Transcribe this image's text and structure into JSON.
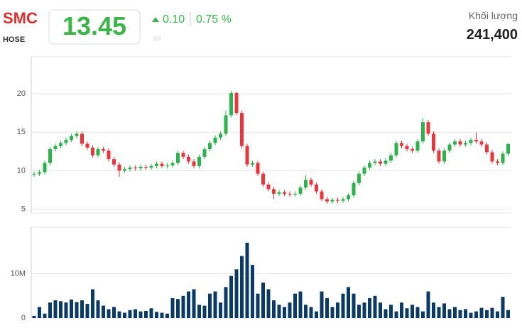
{
  "header": {
    "symbol": "SMC",
    "exchange": "HOSE",
    "price": "13.45",
    "change": "0.10",
    "change_pct": "0.75 %",
    "volume_label": "Khối lượng",
    "volume": "241,400"
  },
  "chart_data": [
    {
      "type": "candlestick",
      "up_color": "#2eb24b",
      "down_color": "#e8363c",
      "ylim": [
        4.5,
        24.8
      ],
      "yticks": [
        5,
        10,
        15,
        20
      ],
      "grid": true,
      "open": [
        9.5,
        9.6,
        9.8,
        11,
        12.8,
        13.2,
        13.6,
        14,
        14.5,
        14.8,
        13.5,
        13,
        12,
        12.8,
        12.6,
        11.5,
        10.8,
        10,
        10.2,
        10.4,
        10.3,
        10.5,
        10.4,
        10.6,
        10.9,
        10.6,
        10.7,
        11,
        12.3,
        11.8,
        11.2,
        10.6,
        11.8,
        12.8,
        13.6,
        14.3,
        14.8,
        17.2,
        20.1,
        17.5,
        13.2,
        10.8,
        11,
        9.6,
        8.2,
        7.6,
        7,
        7.2,
        7,
        6.9,
        7,
        7.8,
        8.8,
        8.2,
        7.3,
        6.3,
        6,
        6.2,
        6.1,
        6.3,
        6.8,
        8.4,
        9.6,
        10.4,
        11,
        11.2,
        10.9,
        11.3,
        12,
        13.6,
        13.2,
        12.8,
        12.6,
        13.8,
        16.3,
        14.8,
        12.6,
        11.2,
        12.6,
        13.4,
        13.8,
        13.4,
        13.6,
        14,
        13.8,
        13.4,
        12.4,
        11.2,
        11,
        12.2
      ],
      "high": [
        9.9,
        10.1,
        11.3,
        13.1,
        13.5,
        13.9,
        14.3,
        14.8,
        15.1,
        15.1,
        13.8,
        13.3,
        13.1,
        13.1,
        12.9,
        11.8,
        11.1,
        10.5,
        10.7,
        10.7,
        10.8,
        10.8,
        10.9,
        11.2,
        11.2,
        11,
        11.3,
        12.6,
        12.6,
        12.1,
        11.5,
        12.1,
        13.1,
        13.9,
        14.6,
        15.1,
        17.8,
        20.4,
        20.3,
        17.8,
        13.5,
        11.3,
        11.3,
        9.9,
        8.5,
        7.9,
        7.5,
        7.5,
        7.3,
        7.3,
        8.1,
        9.4,
        9.1,
        8.5,
        7.6,
        6.6,
        6.5,
        6.5,
        6.6,
        7.1,
        8.7,
        9.9,
        10.7,
        11.3,
        11.5,
        11.5,
        11.6,
        12.3,
        13.9,
        13.9,
        13.5,
        13.1,
        14.1,
        16.8,
        16.6,
        15.1,
        12.9,
        12.9,
        13.7,
        14.1,
        14.1,
        13.9,
        14.3,
        15,
        14.1,
        13.7,
        12.7,
        11.5,
        12.5,
        13.6
      ],
      "low": [
        9.2,
        9.3,
        9.5,
        10.7,
        12.5,
        12.9,
        13.3,
        13.7,
        14.2,
        13.2,
        12.7,
        11.7,
        11.7,
        12.3,
        11.2,
        10.5,
        9.2,
        9.7,
        9.9,
        10,
        10,
        10.1,
        10.1,
        10.3,
        10.3,
        10.3,
        10.4,
        10.7,
        11.5,
        10.9,
        10.3,
        10.3,
        11.5,
        12.5,
        13.3,
        14,
        14.5,
        16.9,
        17.2,
        12.9,
        10.5,
        10.5,
        9.3,
        7.9,
        7.3,
        6.3,
        6.7,
        6.7,
        6.6,
        6.6,
        6.7,
        7.5,
        7.9,
        7,
        6,
        5.7,
        5.7,
        5.8,
        5.8,
        6,
        6.5,
        8.1,
        9.3,
        10.1,
        10.7,
        10.6,
        10.6,
        11,
        11.7,
        12.9,
        12.5,
        12.3,
        12.3,
        13.5,
        14.5,
        12.3,
        10.9,
        10.9,
        12.3,
        13.1,
        13.1,
        13.1,
        13.3,
        13.5,
        13.1,
        12.1,
        10.9,
        10.7,
        10.7,
        11.9
      ],
      "close": [
        9.6,
        9.8,
        11,
        12.8,
        13.2,
        13.6,
        14,
        14.5,
        14.8,
        13.5,
        13,
        12,
        12.8,
        12.6,
        11.5,
        10.8,
        10,
        10.2,
        10.4,
        10.3,
        10.5,
        10.4,
        10.6,
        10.9,
        10.6,
        10.7,
        11,
        12.3,
        11.8,
        11.2,
        10.6,
        11.8,
        12.8,
        13.6,
        14.3,
        14.8,
        17.2,
        20.1,
        17.5,
        13.2,
        10.8,
        11,
        9.6,
        8.2,
        7.6,
        7,
        7.2,
        7,
        6.9,
        7,
        7.8,
        8.8,
        8.2,
        7.3,
        6.3,
        6,
        6.2,
        6.1,
        6.3,
        6.8,
        8.4,
        9.6,
        10.4,
        11,
        11.2,
        10.9,
        11.3,
        12,
        13.6,
        13.2,
        12.8,
        12.6,
        13.8,
        16.3,
        14.8,
        12.6,
        11.2,
        12.6,
        13.4,
        13.8,
        13.4,
        13.6,
        14,
        13.8,
        13.4,
        12.4,
        11.2,
        11,
        12.2,
        13.45
      ]
    },
    {
      "type": "bar",
      "color": "#0c3a66",
      "ylim": [
        0,
        20.5
      ],
      "yticks": [
        0,
        {
          "value": 10,
          "label": "10M"
        }
      ],
      "grid": true,
      "values": [
        0.5,
        2.5,
        1,
        3.5,
        4,
        3.8,
        3.5,
        4.2,
        3.6,
        4,
        3.2,
        6.5,
        4,
        2.8,
        2,
        2.5,
        1.5,
        1.2,
        1.8,
        2,
        1.5,
        1.6,
        2.2,
        1.4,
        1.2,
        1,
        4.5,
        4.3,
        5,
        6,
        6.5,
        3,
        2.8,
        5.5,
        6,
        3.5,
        7,
        9.5,
        11,
        14,
        17,
        12,
        5.5,
        8,
        6.5,
        4,
        3,
        2.5,
        3.5,
        5.5,
        6,
        3,
        2.5,
        1.5,
        6,
        4.5,
        2.5,
        3.5,
        5.5,
        7,
        5.5,
        3,
        3.5,
        4.5,
        5,
        3.5,
        2,
        3,
        1.5,
        3.5,
        2.2,
        3,
        2.5,
        1.5,
        6,
        3.5,
        2.5,
        3.3,
        2,
        2.5,
        1.8,
        2,
        1.2,
        1.5,
        2.3,
        1.8,
        2.3,
        1.5,
        4.8,
        1.8
      ]
    }
  ]
}
